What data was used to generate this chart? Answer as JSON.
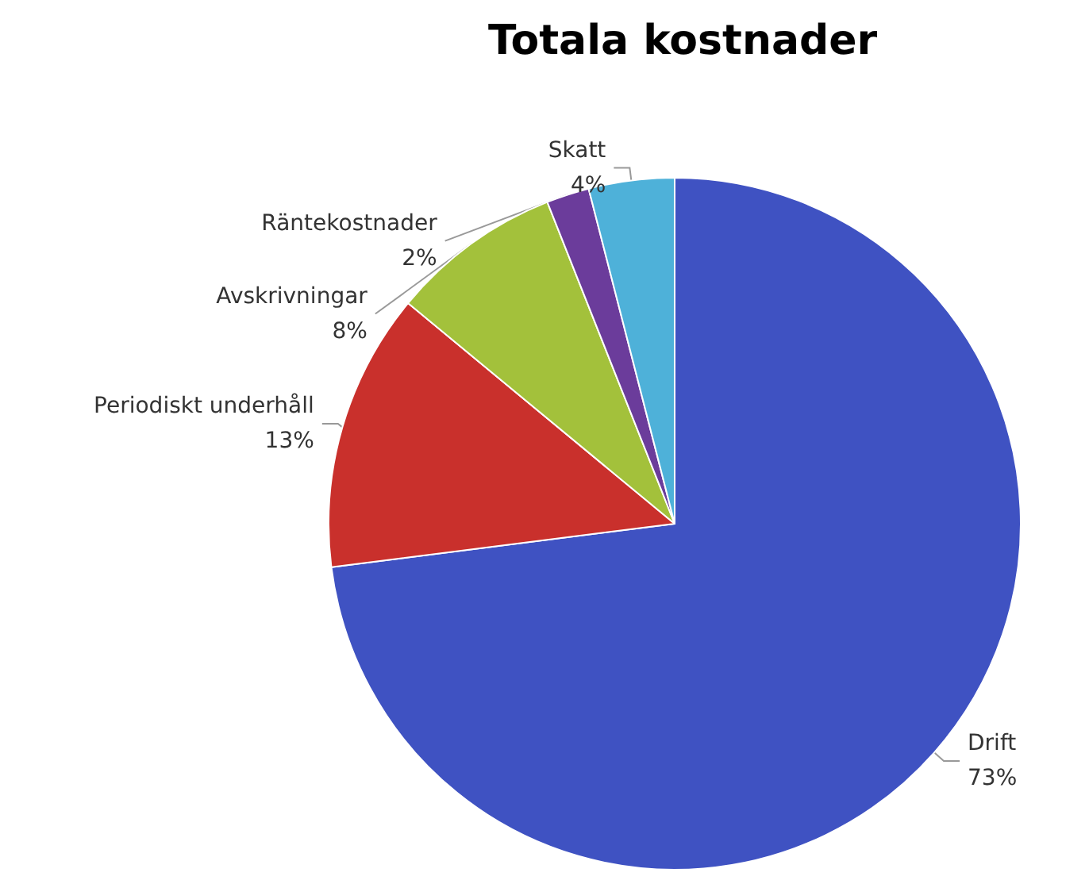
{
  "chart_data": {
    "type": "pie",
    "title": "Totala kostnader",
    "categories": [
      "Drift",
      "Periodiskt underhåll",
      "Avskrivningar",
      "Räntekostnader",
      "Skatt"
    ],
    "values": [
      73,
      13,
      8,
      2,
      4
    ],
    "value_labels": [
      "73%",
      "13%",
      "8%",
      "2%",
      "4%"
    ],
    "colors": [
      "#3f52c2",
      "#c9302c",
      "#a3c13b",
      "#6b3c9b",
      "#4eb1d9"
    ],
    "legend": false
  }
}
